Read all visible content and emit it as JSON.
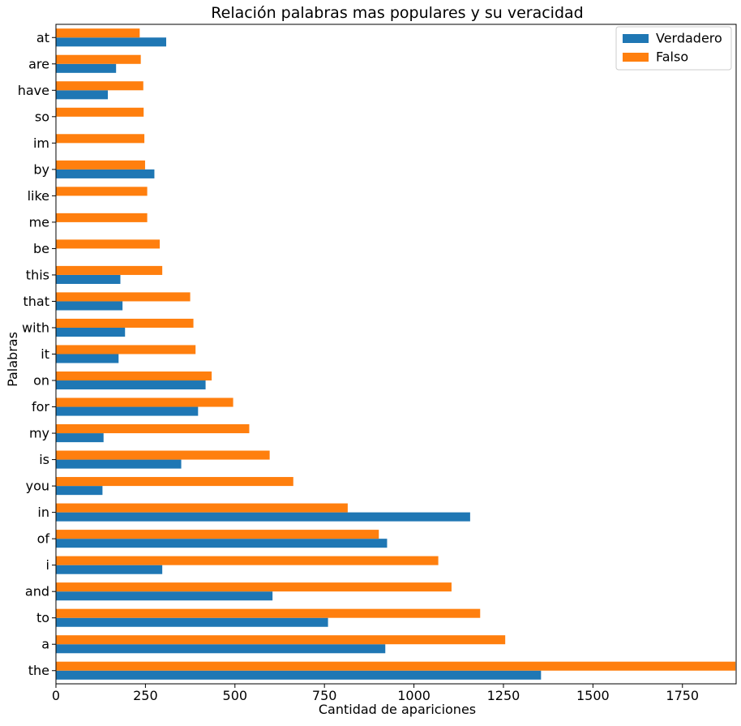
{
  "chart_data": {
    "type": "bar",
    "orientation": "horizontal",
    "title": "Relación palabras mas populares y su veracidad",
    "xlabel": "Cantidad de apariciones",
    "ylabel": "Palabras",
    "xlim": [
      0,
      1900
    ],
    "xticks": [
      0,
      250,
      500,
      750,
      1000,
      1250,
      1500,
      1750
    ],
    "categories": [
      "the",
      "a",
      "to",
      "and",
      "i",
      "of",
      "in",
      "you",
      "is",
      "my",
      "for",
      "on",
      "it",
      "with",
      "that",
      "this",
      "be",
      "me",
      "like",
      "by",
      "im",
      "so",
      "have",
      "are",
      "at"
    ],
    "series": [
      {
        "name": "Verdadero",
        "color": "#1f77b4",
        "values": [
          1355,
          920,
          760,
          605,
          297,
          925,
          1157,
          130,
          350,
          133,
          397,
          418,
          175,
          193,
          186,
          180,
          0,
          0,
          0,
          275,
          0,
          0,
          145,
          168,
          308
        ]
      },
      {
        "name": "Falso",
        "color": "#ff7f0e",
        "values": [
          1898,
          1255,
          1185,
          1105,
          1068,
          902,
          815,
          663,
          597,
          540,
          495,
          435,
          390,
          384,
          375,
          297,
          290,
          255,
          255,
          249,
          247,
          245,
          244,
          237,
          234
        ]
      }
    ],
    "legend_position": "top-right",
    "grid": false
  }
}
